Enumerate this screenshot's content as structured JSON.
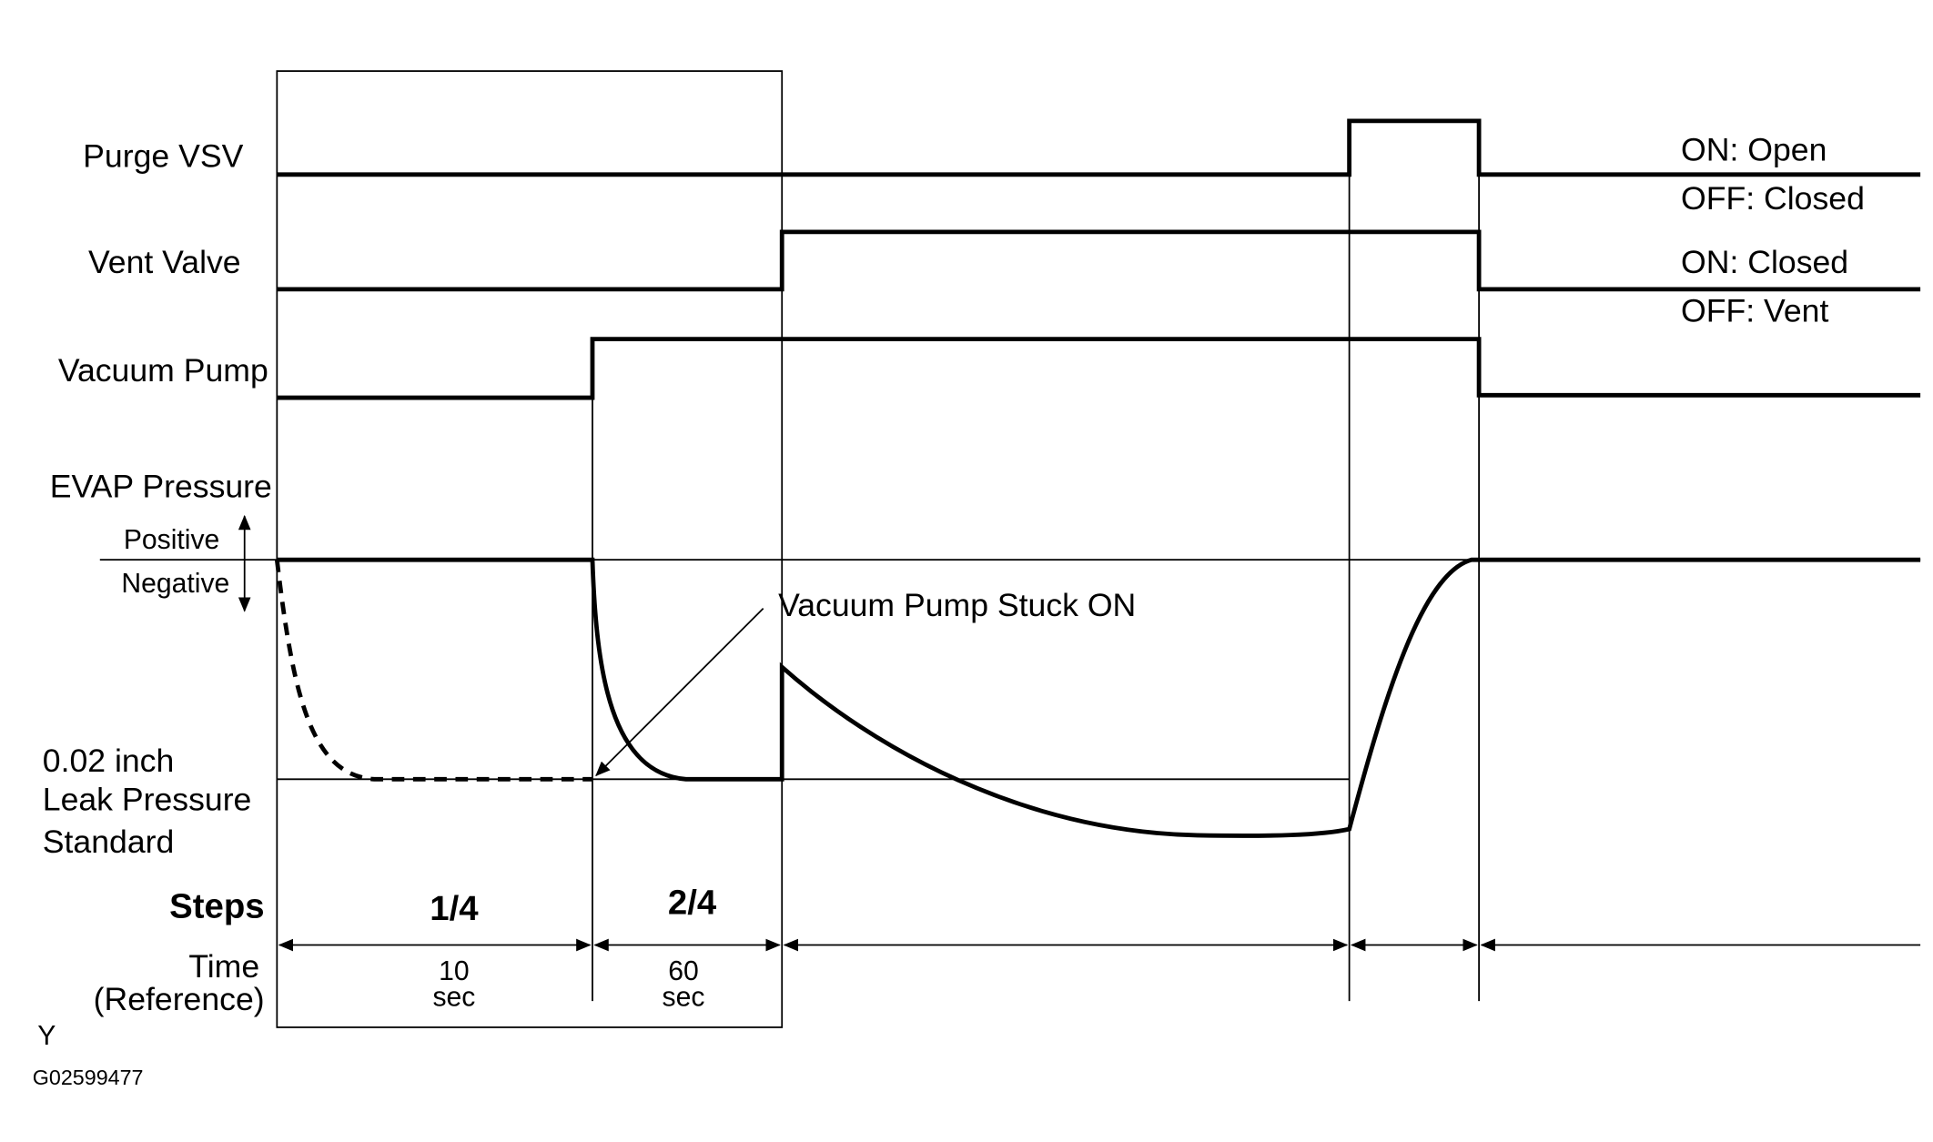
{
  "signals": [
    {
      "label": "Purge VSV",
      "on": "ON: Open",
      "off": "OFF: Closed"
    },
    {
      "label": "Vent Valve",
      "on": "ON: Closed",
      "off": "OFF: Vent"
    },
    {
      "label": "Vacuum Pump"
    },
    {
      "label": "EVAP Pressure",
      "positive": "Positive",
      "negative": "Negative"
    }
  ],
  "leak_standard": [
    "0.02 inch",
    "Leak Pressure",
    "Standard"
  ],
  "annotation": "Vacuum Pump Stuck ON",
  "steps": {
    "label": "Steps",
    "items": [
      "1/4",
      "2/4"
    ]
  },
  "time": {
    "label": [
      "Time",
      "(Reference)"
    ],
    "items": [
      [
        "10",
        "sec"
      ],
      [
        "60",
        "sec"
      ]
    ]
  },
  "corner_mark": "Y",
  "figure_id": "G02599477"
}
